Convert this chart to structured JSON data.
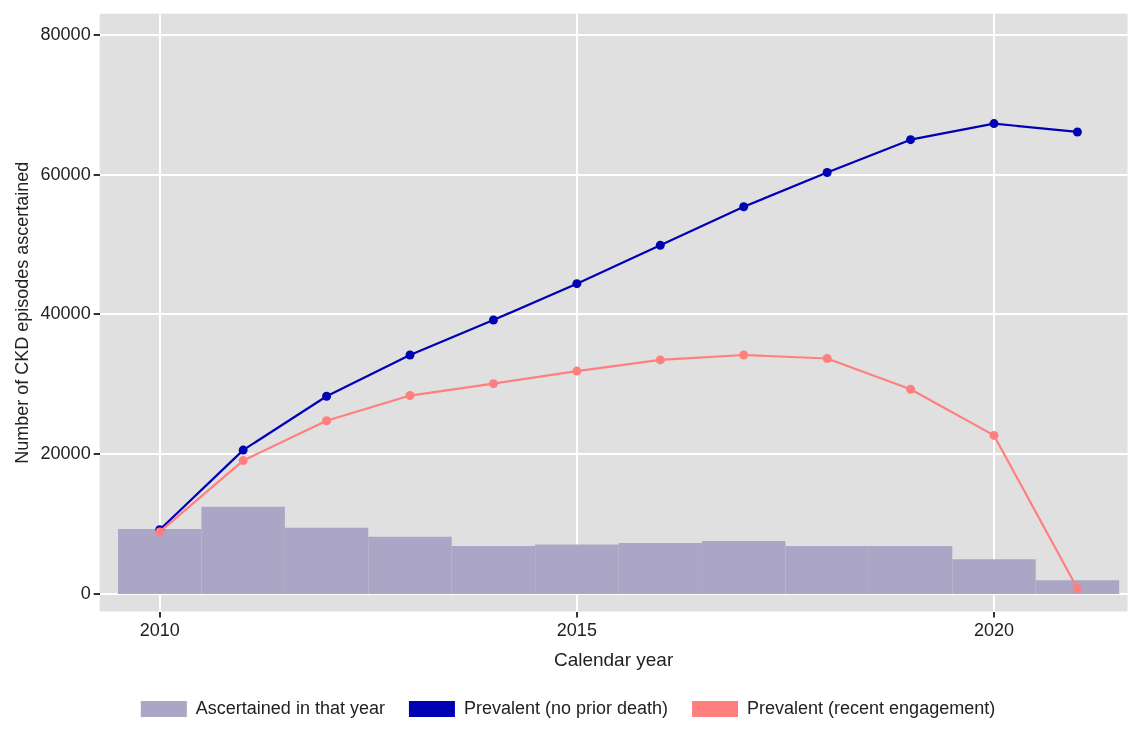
{
  "chart_data": {
    "type": "line",
    "xlabel": "Calendar year",
    "ylabel": "Number of CKD episodes ascertained",
    "xlim": [
      2009.28,
      2021.6
    ],
    "xticks": [
      2010,
      2015,
      2020
    ],
    "ylim": [
      -2500,
      83000
    ],
    "yticks": [
      0,
      20000,
      40000,
      60000,
      80000
    ],
    "grid": true,
    "legend": "bottom",
    "marker": "circle",
    "series": [
      {
        "name": "Ascertained in that year",
        "type": "histogram",
        "color": "#aba6c6",
        "bins": [
          2009.5,
          2010.5,
          2011.5,
          2012.5,
          2013.5,
          2014.5,
          2015.5,
          2016.5,
          2017.5,
          2018.5,
          2019.5,
          2020.5,
          2021.5
        ],
        "values": [
          9300,
          12500,
          9500,
          8200,
          6900,
          7100,
          7300,
          7600,
          6900,
          6900,
          5000,
          2000
        ]
      },
      {
        "name": "Prevalent (no prior death)",
        "color": "#0000b4",
        "x": [
          2010,
          2011,
          2012,
          2013,
          2014,
          2015,
          2016,
          2017,
          2018,
          2019,
          2020,
          2021
        ],
        "values": [
          9200,
          20600,
          28300,
          34200,
          39200,
          44400,
          49900,
          55400,
          60300,
          65000,
          67300,
          66100
        ]
      },
      {
        "name": "Prevalent (recent engagement)",
        "color": "#ff7f7f",
        "x": [
          2010,
          2011,
          2012,
          2013,
          2014,
          2015,
          2016,
          2017,
          2018,
          2019,
          2020,
          2021
        ],
        "values": [
          8900,
          19100,
          24800,
          28400,
          30100,
          31900,
          33500,
          34200,
          33700,
          29300,
          22700,
          800
        ]
      }
    ]
  }
}
